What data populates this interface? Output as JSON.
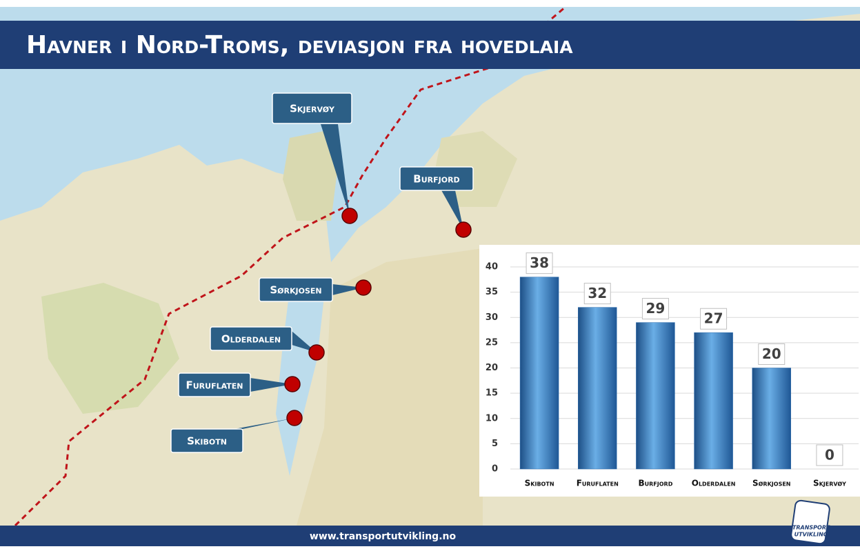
{
  "header": {
    "title": "Havner i Nord-Troms, deviasjon fra hovedlaia"
  },
  "map": {
    "ports": [
      "Skjervøy",
      "Burfjord",
      "Sørkjosen",
      "Olderdalen",
      "Furuflaten",
      "Skibotn"
    ]
  },
  "chart_data": {
    "type": "bar",
    "categories": [
      "Skibotn",
      "Furuflaten",
      "Burfjord",
      "Olderdalen",
      "Sørkjosen",
      "Skjervøy"
    ],
    "values": [
      38,
      32,
      29,
      27,
      20,
      0
    ],
    "color": "#2f6fb0",
    "ylim": [
      0,
      40
    ],
    "yticks": [
      0,
      5,
      10,
      15,
      20,
      25,
      30,
      35,
      40
    ],
    "grid": true
  },
  "footer": {
    "url": "www.transportutvikling.no",
    "logo": [
      "TRANSPORT",
      "UTVIKLING"
    ]
  }
}
